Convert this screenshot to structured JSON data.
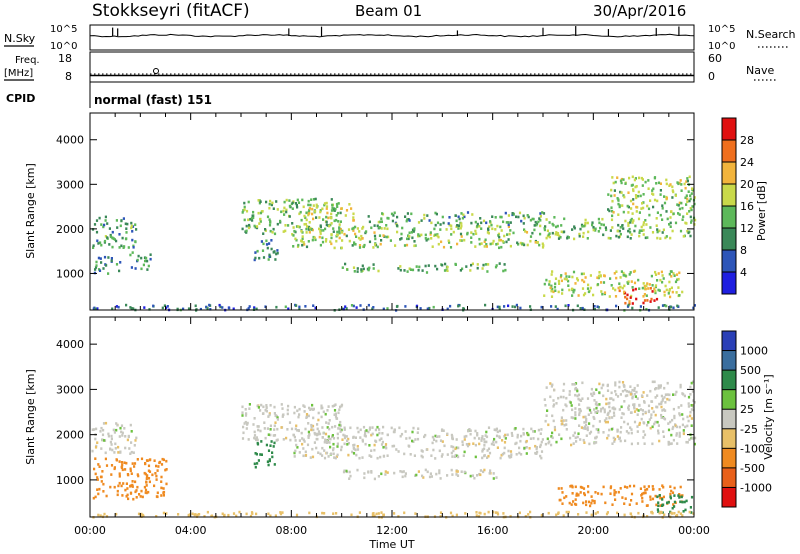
{
  "header": {
    "station": "Stokkseyri (fitACF)",
    "beam": "Beam 01",
    "date": "30/Apr/2016"
  },
  "noise_panel": {
    "left_label": "N.Sky",
    "right_label": "N.Search",
    "left_ticks": [
      "10^5",
      "10^0"
    ],
    "right_ticks": [
      "10^5",
      "10^0"
    ]
  },
  "freq_panel": {
    "left_label_1": "Freq.",
    "left_label_2": "[MHz]",
    "left_ticks": [
      "18",
      "8"
    ],
    "right_label": "Nave",
    "right_ticks": [
      "60",
      "0"
    ],
    "freq_mhz": 10.5,
    "nave": 20
  },
  "cpid_panel": {
    "label": "CPID",
    "mode": "normal (fast) 151"
  },
  "chart_data": [
    {
      "type": "heatmap",
      "parameter": "power",
      "ylabel": "Slant Range [km]",
      "ylim": [
        180,
        4600
      ],
      "y_ticks": [
        "1000",
        "2000",
        "3000",
        "4000"
      ],
      "colorbar": {
        "label": "Power [dB]",
        "ticks": [
          "4",
          "8",
          "12",
          "16",
          "20",
          "24",
          "28"
        ],
        "colors": [
          "#1f1fe0",
          "#2d55b8",
          "#3a8858",
          "#5db85a",
          "#c9d94a",
          "#f2b43c",
          "#ef6f1e",
          "#e01010"
        ]
      },
      "echo_regions": [
        {
          "t_start": 0.0,
          "t_end": 1.8,
          "range_start": 1600,
          "range_end": 2300,
          "value": 12
        },
        {
          "t_start": 0.1,
          "t_end": 1.2,
          "range_start": 1000,
          "range_end": 1400,
          "value": 10
        },
        {
          "t_start": 1.5,
          "t_end": 2.4,
          "range_start": 1100,
          "range_end": 1500,
          "value": 10
        },
        {
          "t_start": 6.0,
          "t_end": 10.0,
          "range_start": 1900,
          "range_end": 2700,
          "value": 14
        },
        {
          "t_start": 6.5,
          "t_end": 7.5,
          "range_start": 1300,
          "range_end": 1800,
          "value": 9
        },
        {
          "t_start": 8.5,
          "t_end": 10.5,
          "range_start": 2200,
          "range_end": 2600,
          "value": 18
        },
        {
          "t_start": 8.0,
          "t_end": 18.0,
          "range_start": 1600,
          "range_end": 2100,
          "value": 16
        },
        {
          "t_start": 10.0,
          "t_end": 16.5,
          "range_start": 1050,
          "range_end": 1250,
          "value": 13
        },
        {
          "t_start": 11.0,
          "t_end": 18.0,
          "range_start": 2100,
          "range_end": 2400,
          "value": 12
        },
        {
          "t_start": 18.0,
          "t_end": 24.0,
          "range_start": 1800,
          "range_end": 2300,
          "value": 14
        },
        {
          "t_start": 20.5,
          "t_end": 24.0,
          "range_start": 2300,
          "range_end": 3200,
          "value": 16
        },
        {
          "t_start": 18.0,
          "t_end": 23.5,
          "range_start": 500,
          "range_end": 1100,
          "value": 18
        },
        {
          "t_start": 21.0,
          "t_end": 22.5,
          "range_start": 350,
          "range_end": 700,
          "value": 28
        },
        {
          "t_start": 0.0,
          "t_end": 24.0,
          "range_start": 200,
          "range_end": 320,
          "value": 8
        }
      ]
    },
    {
      "type": "heatmap",
      "parameter": "velocity",
      "ylabel": "Slant Range [km]",
      "xlabel": "Time UT",
      "ylim": [
        180,
        4600
      ],
      "y_ticks": [
        "1000",
        "2000",
        "3000",
        "4000"
      ],
      "x_ticks": [
        "00:00",
        "04:00",
        "08:00",
        "12:00",
        "16:00",
        "20:00",
        "00:00"
      ],
      "colorbar": {
        "label": "Velocity [m s⁻¹]",
        "ticks": [
          "1000",
          "500",
          "100",
          "25",
          "-25",
          "-100",
          "-500",
          "-1000"
        ],
        "colors": [
          "#2a3fb6",
          "#3a6e9e",
          "#2e8a4a",
          "#6cc13e",
          "#c8c8c0",
          "#e8c068",
          "#ef8a20",
          "#e8601a",
          "#e01010"
        ]
      },
      "echo_regions": [
        {
          "t_start": 0.0,
          "t_end": 1.8,
          "range_start": 1600,
          "range_end": 2300,
          "value": 0
        },
        {
          "t_start": 0.1,
          "t_end": 3.0,
          "range_start": 600,
          "range_end": 1500,
          "value": -300
        },
        {
          "t_start": 6.5,
          "t_end": 7.3,
          "range_start": 1300,
          "range_end": 1900,
          "value": 150
        },
        {
          "t_start": 6.0,
          "t_end": 10.0,
          "range_start": 1900,
          "range_end": 2700,
          "value": 0
        },
        {
          "t_start": 8.0,
          "t_end": 18.0,
          "range_start": 1500,
          "range_end": 2200,
          "value": 0
        },
        {
          "t_start": 10.0,
          "t_end": 16.5,
          "range_start": 1050,
          "range_end": 1250,
          "value": 0
        },
        {
          "t_start": 18.0,
          "t_end": 24.0,
          "range_start": 1800,
          "range_end": 3200,
          "value": 0
        },
        {
          "t_start": 18.5,
          "t_end": 23.5,
          "range_start": 450,
          "range_end": 900,
          "value": -300
        },
        {
          "t_start": 22.5,
          "t_end": 24.0,
          "range_start": 300,
          "range_end": 700,
          "value": 150
        },
        {
          "t_start": 0.0,
          "t_end": 24.0,
          "range_start": 200,
          "range_end": 320,
          "value": -60
        }
      ]
    }
  ]
}
